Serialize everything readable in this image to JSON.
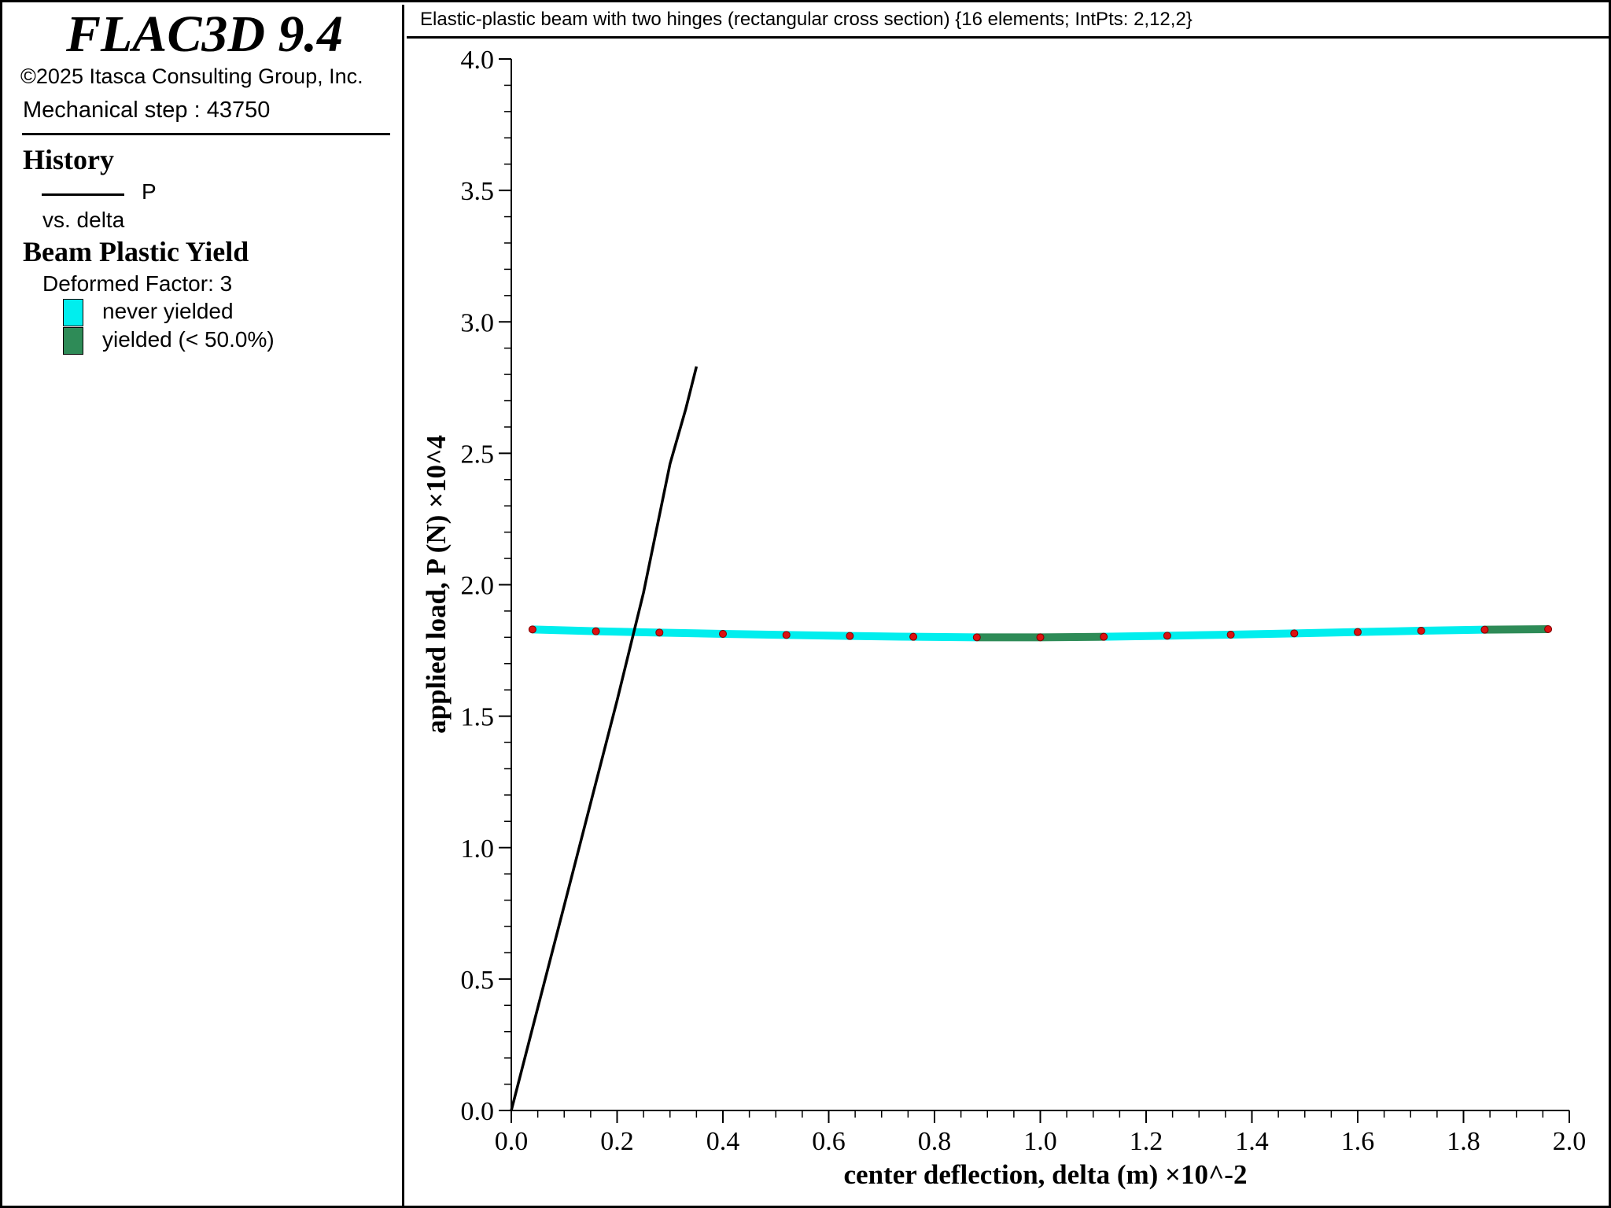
{
  "app": {
    "title": "FLAC3D 9.4",
    "copyright": "©2025 Itasca Consulting Group, Inc.",
    "step": "Mechanical step : 43750"
  },
  "legend": {
    "history_heading": "History",
    "history_series": "P",
    "history_vs": "vs. delta",
    "yield_heading": "Beam Plastic Yield",
    "deformed_factor": "Deformed Factor: 3",
    "items": [
      {
        "label": "never yielded",
        "color": "#00eeee"
      },
      {
        "label": "yielded (< 50.0%)",
        "color": "#2e8b57"
      }
    ]
  },
  "plot_title": "Elastic-plastic beam with two hinges (rectangular cross section) {16 elements; IntPts: 2,12,2}",
  "chart_data": {
    "type": "line",
    "title": "Elastic-plastic beam with two hinges (rectangular cross section) {16 elements; IntPts: 2,12,2}",
    "xlabel": "center deflection, delta (m) ×10^-2",
    "ylabel": "applied load, P (N) ×10^4",
    "xlim": [
      0.0,
      2.0
    ],
    "ylim": [
      0.0,
      4.0
    ],
    "x_ticks": [
      "0.0",
      "0.2",
      "0.4",
      "0.6",
      "0.8",
      "1.0",
      "1.2",
      "1.4",
      "1.6",
      "1.8",
      "2.0"
    ],
    "y_ticks": [
      "0.0",
      "0.5",
      "1.0",
      "1.5",
      "2.0",
      "2.5",
      "3.0",
      "3.5",
      "4.0"
    ],
    "grid": false,
    "series": [
      {
        "name": "P",
        "color": "#000000",
        "x": [
          0.0,
          0.05,
          0.1,
          0.15,
          0.2,
          0.25,
          0.3,
          0.33,
          0.35
        ],
        "y": [
          0.0,
          0.39,
          0.78,
          1.17,
          1.56,
          1.97,
          2.46,
          2.67,
          2.83
        ]
      }
    ],
    "beam_overlay": {
      "description": "Beam Plastic Yield",
      "nodes": {
        "x": [
          0.04,
          0.16,
          0.28,
          0.4,
          0.52,
          0.64,
          0.76,
          0.88,
          1.0,
          1.12,
          1.24,
          1.36,
          1.48,
          1.6,
          1.72,
          1.84,
          1.96
        ],
        "y": [
          1.83,
          1.823,
          1.818,
          1.813,
          1.809,
          1.805,
          1.802,
          1.8,
          1.8,
          1.802,
          1.806,
          1.81,
          1.815,
          1.82,
          1.825,
          1.829,
          1.831
        ]
      },
      "element_states": [
        "never yielded",
        "never yielded",
        "never yielded",
        "never yielded",
        "never yielded",
        "never yielded",
        "never yielded",
        "yielded (< 50.0%)",
        "yielded (< 50.0%)",
        "never yielded",
        "never yielded",
        "never yielded",
        "never yielded",
        "never yielded",
        "never yielded",
        "yielded (< 50.0%)"
      ],
      "node_color": "#dd1111"
    }
  }
}
